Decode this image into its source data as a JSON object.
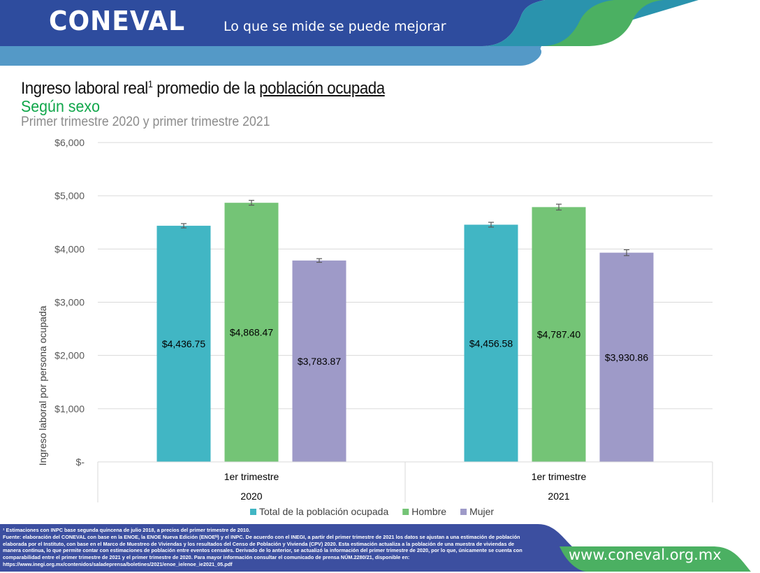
{
  "header": {
    "logo": "CONEVAL",
    "tagline": "Lo que se mide se puede mejorar",
    "colors": {
      "navy": "#2e4c9e",
      "light_blue": "#5499c7",
      "teal": "#2a93ad",
      "green": "#4bb062"
    }
  },
  "title": {
    "main_part1": "Ingreso laboral real",
    "main_sup": "1",
    "main_part2": " promedio de la ",
    "main_underlined": "población ocupada",
    "subtitle": "Según sexo",
    "period": "Primer trimestre 2020 y primer trimestre 2021"
  },
  "chart_data": {
    "type": "bar",
    "title": "Ingreso laboral real promedio de la población ocupada",
    "ylabel": "Ingreso laboral por persona ocupada",
    "xlabel": "",
    "ylim": [
      0,
      6000
    ],
    "yticks": [
      0,
      1000,
      2000,
      3000,
      4000,
      5000,
      6000
    ],
    "ytick_labels": [
      "$-",
      "$1,000",
      "$2,000",
      "$3,000",
      "$4,000",
      "$5,000",
      "$6,000"
    ],
    "grid": true,
    "categories": [
      {
        "label": "1er trimestre",
        "year": "2020"
      },
      {
        "label": "1er trimestre",
        "year": "2021"
      }
    ],
    "series": [
      {
        "name": "Total de la población ocupada",
        "color": "#41b6c4",
        "values": [
          4436.75,
          4456.58
        ],
        "labels": [
          "$4,436.75",
          "$4,456.58"
        ],
        "error": [
          40,
          45
        ]
      },
      {
        "name": "Hombre",
        "color": "#74c476",
        "values": [
          4868.47,
          4787.4
        ],
        "labels": [
          "$4,868.47",
          "$4,787.40"
        ],
        "error": [
          45,
          55
        ]
      },
      {
        "name": "Mujer",
        "color": "#9e9ac8",
        "values": [
          3783.87,
          3930.86
        ],
        "labels": [
          "$3,783.87",
          "$3,930.86"
        ],
        "error": [
          35,
          55
        ]
      }
    ],
    "legend_position": "bottom"
  },
  "footer": {
    "notes": [
      "¹ Estimaciones con INPC base segunda quincena de julio 2018, a precios del primer trimestre de 2010.",
      "Fuente: elaboración del CONEVAL con base en la ENOE, la ENOE Nueva Edición (ENOEᴺ) y el INPC. De acuerdo con el INEGI, a partir del primer trimestre de 2021 los datos se ajustan a una estimación de población",
      "elaborada por el Instituto, con base en el Marco de Muestreo de Viviendas y los resultados del Censo de Población y Vivienda (CPV) 2020. Esta estimación actualiza a la población de una muestra de viviendas de",
      "manera continua, lo que permite contar con estimaciones de población entre eventos censales. Derivado de lo anterior, se actualizó la información del primer trimestre de 2020, por lo que, únicamente se cuenta con",
      "comparabilidad entre el primer trimestre de 2021 y el primer trimestre de 2020. Para mayor información consultar el comunicado de prensa NÚM.2280/21, disponible en:",
      "https://www.inegi.org.mx/contenidos/saladeprensa/boletines/2021/enoe_ie/enoe_ie2021_05.pdf"
    ],
    "url": "www.coneval.org.mx"
  }
}
